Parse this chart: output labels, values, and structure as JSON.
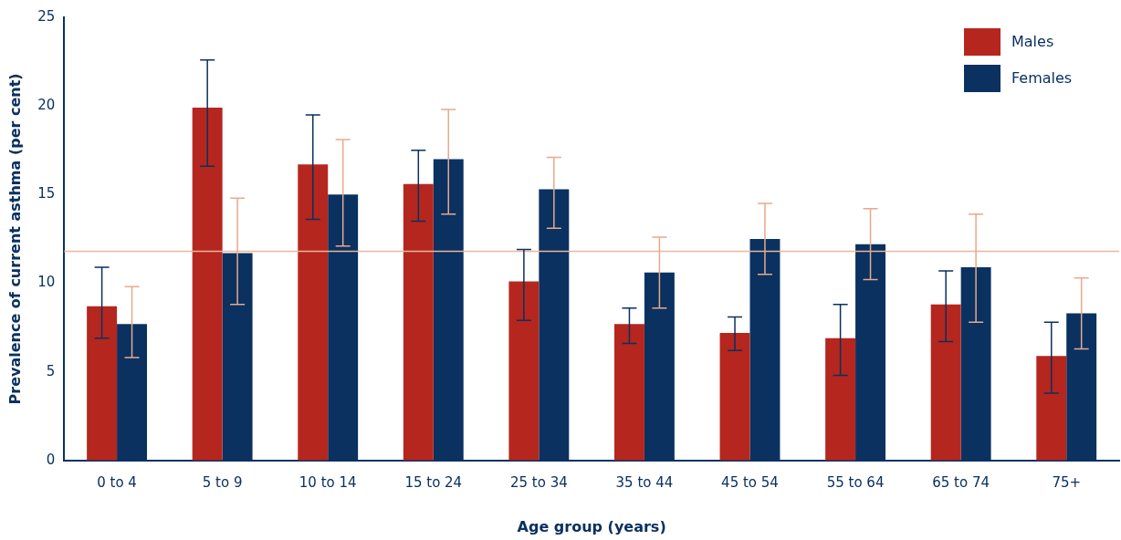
{
  "chart_data": {
    "type": "bar",
    "xlabel": "Age group (years)",
    "ylabel": "Prevalence of current asthma (per cent)",
    "categories": [
      "0 to 4",
      "5 to 9",
      "10 to 14",
      "15 to 24",
      "25 to 34",
      "35 to 44",
      "45 to 54",
      "55 to 64",
      "65 to 74",
      "75+"
    ],
    "series": [
      {
        "name": "Males",
        "color": "#b5261e",
        "values": [
          8.7,
          19.9,
          16.7,
          15.6,
          10.1,
          7.7,
          7.2,
          6.9,
          8.8,
          5.9
        ],
        "errors": [
          [
            6.9,
            10.9
          ],
          [
            16.6,
            22.6
          ],
          [
            13.6,
            19.5
          ],
          [
            13.5,
            17.5
          ],
          [
            7.9,
            11.9
          ],
          [
            6.6,
            8.6
          ],
          [
            6.2,
            8.1
          ],
          [
            4.8,
            8.8
          ],
          [
            6.7,
            10.7
          ],
          [
            3.8,
            7.8
          ]
        ]
      },
      {
        "name": "Females",
        "color": "#0a3160",
        "values": [
          7.7,
          11.7,
          15.0,
          17.0,
          15.3,
          10.6,
          12.5,
          12.2,
          10.9,
          8.3
        ],
        "errors": [
          [
            5.8,
            9.8
          ],
          [
            8.8,
            14.8
          ],
          [
            12.1,
            18.1
          ],
          [
            13.9,
            19.8
          ],
          [
            13.1,
            17.1
          ],
          [
            8.6,
            12.6
          ],
          [
            10.5,
            14.5
          ],
          [
            10.2,
            14.2
          ],
          [
            7.8,
            13.9
          ],
          [
            6.3,
            10.3
          ]
        ]
      }
    ],
    "ylim": [
      0,
      25
    ],
    "yticks": [
      0,
      5,
      10,
      15,
      20,
      25
    ],
    "grid": false,
    "legend": "top right",
    "ref_lines": [
      {
        "axis": "y",
        "value": 11.8,
        "color": "#eab69c"
      }
    ]
  }
}
